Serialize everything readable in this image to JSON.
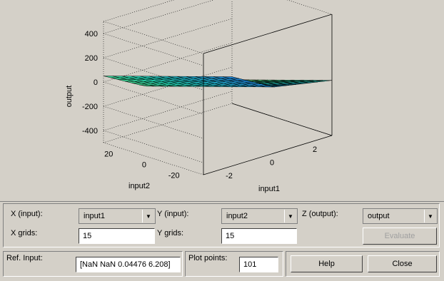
{
  "plot": {
    "zlabel": "output",
    "xlabel": "input1",
    "ylabel": "input2",
    "zticks": [
      "400",
      "200",
      "0",
      "-200",
      "-400"
    ],
    "xticks": [
      "-2",
      "0",
      "2"
    ],
    "yticks": [
      "20",
      "0",
      "-20"
    ],
    "colors": {
      "low": "#1f4fff",
      "mid": "#22d6b0",
      "high": "#f2f21a"
    }
  },
  "chart_data": {
    "type": "surface",
    "xlabel": "input1",
    "ylabel": "input2",
    "zlabel": "output",
    "xlim": [
      -3,
      3
    ],
    "ylim": [
      -30,
      30
    ],
    "zlim": [
      -500,
      500
    ],
    "grid": true,
    "x_grids": 15,
    "y_grids": 15
  },
  "controls": {
    "x_input_label": "X (input):",
    "x_input_value": "input1",
    "y_input_label": "Y (input):",
    "y_input_value": "input2",
    "z_output_label": "Z (output):",
    "z_output_value": "output",
    "x_grids_label": "X grids:",
    "x_grids_value": "15",
    "y_grids_label": "Y grids:",
    "y_grids_value": "15",
    "evaluate_label": "Evaluate"
  },
  "bottom": {
    "ref_input_label": "Ref. Input:",
    "ref_input_value": "[NaN NaN 0.04476 6.208]",
    "plot_points_label": "Plot points:",
    "plot_points_value": "101",
    "help_label": "Help",
    "close_label": "Close"
  }
}
